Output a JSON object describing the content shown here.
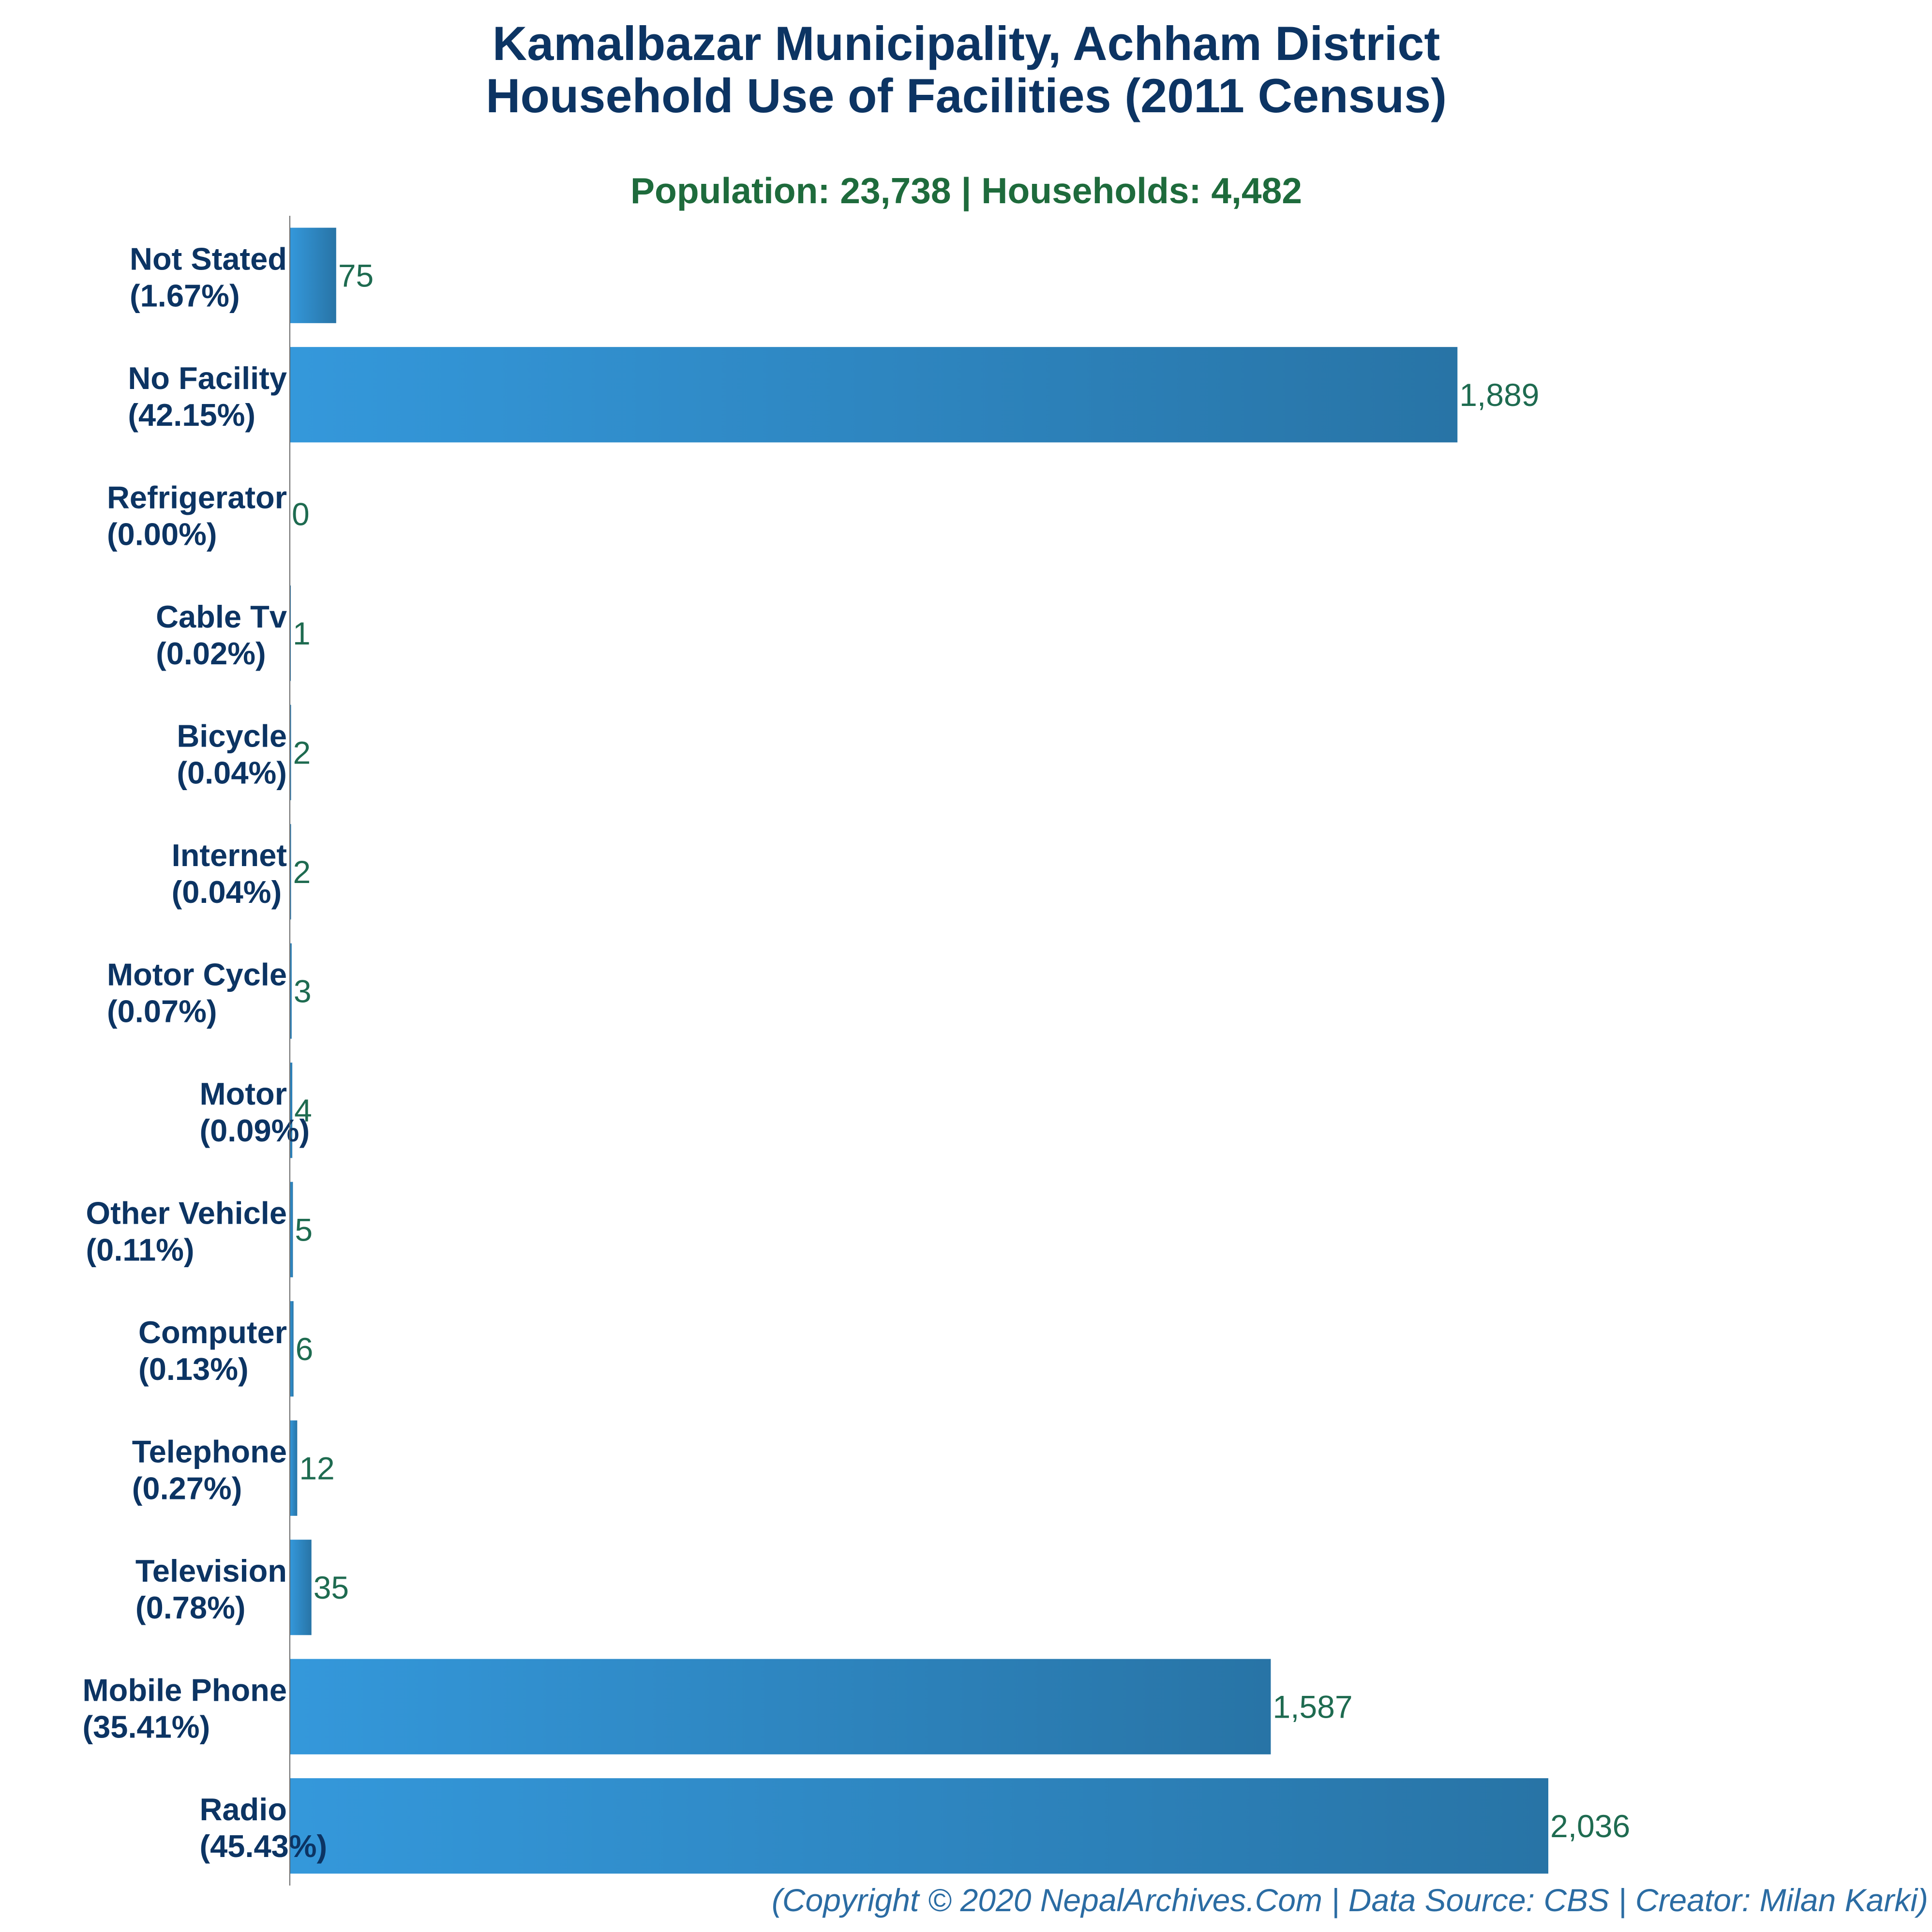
{
  "chart_data": {
    "type": "bar",
    "orientation": "horizontal",
    "title": [
      "Kamalbazar Municipality, Achham District",
      "Household Use of Facilities (2011 Census)"
    ],
    "subtitle": "Population: 23,738 | Households: 4,482",
    "categories": [
      {
        "name": "Not Stated",
        "pct": "(1.67%)"
      },
      {
        "name": "No Facility",
        "pct": "(42.15%)"
      },
      {
        "name": "Refrigerator",
        "pct": "(0.00%)"
      },
      {
        "name": "Cable Tv",
        "pct": "(0.02%)"
      },
      {
        "name": "Bicycle",
        "pct": "(0.04%)"
      },
      {
        "name": "Internet",
        "pct": "(0.04%)"
      },
      {
        "name": "Motor Cycle",
        "pct": "(0.07%)"
      },
      {
        "name": "Motor",
        "pct": "(0.09%)"
      },
      {
        "name": "Other Vehicle",
        "pct": "(0.11%)"
      },
      {
        "name": "Computer",
        "pct": "(0.13%)"
      },
      {
        "name": "Telephone",
        "pct": "(0.27%)"
      },
      {
        "name": "Television",
        "pct": "(0.78%)"
      },
      {
        "name": "Mobile Phone",
        "pct": "(35.41%)"
      },
      {
        "name": "Radio",
        "pct": "(45.43%)"
      }
    ],
    "values": [
      75,
      1889,
      0,
      1,
      2,
      2,
      3,
      4,
      5,
      6,
      12,
      35,
      1587,
      2036
    ],
    "value_labels": [
      "75",
      "1,889",
      "0",
      "1",
      "2",
      "2",
      "3",
      "4",
      "5",
      "6",
      "12",
      "35",
      "1,587",
      "2,036"
    ],
    "xlim": [
      0,
      2036
    ],
    "grid": false,
    "colors": {
      "bar_light": "#3498db",
      "bar_dark": "#2874a6",
      "title": "#0c3463",
      "subtitle": "#1e6b3c",
      "value_label": "#1e6b50",
      "footer": "#2b6ca3",
      "axis": "#666666"
    },
    "footer": "(Copyright © 2020 NepalArchives.Com | Data Source: CBS | Creator: Milan Karki)"
  }
}
